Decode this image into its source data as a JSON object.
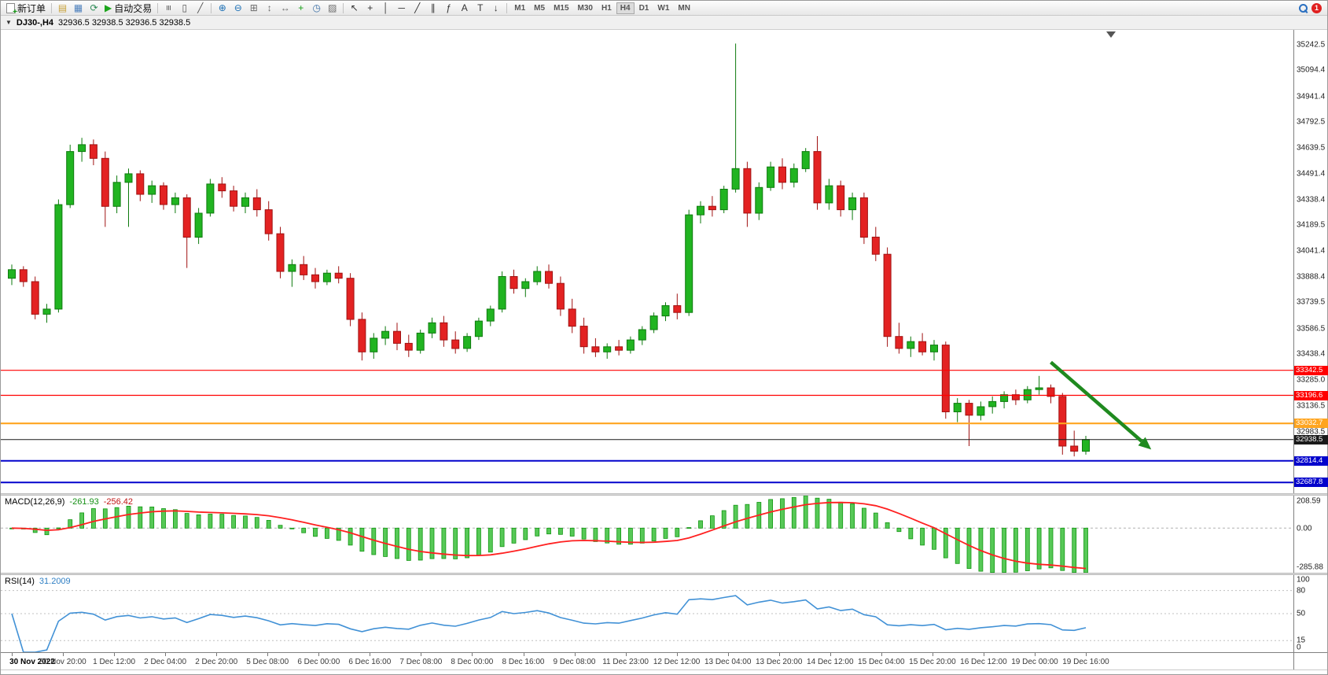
{
  "toolbar": {
    "timeframes": [
      "M1",
      "M5",
      "M15",
      "M30",
      "H1",
      "H4",
      "D1",
      "W1",
      "MN"
    ],
    "active_timeframe": "H4",
    "items": [
      {
        "type": "button",
        "name": "new-order-button",
        "icon": "doc",
        "label": "新订单"
      },
      {
        "type": "sep"
      },
      {
        "type": "icon",
        "name": "profiles-icon",
        "glyph": "▤",
        "color": "#c8a23c"
      },
      {
        "type": "icon",
        "name": "data-window-icon",
        "glyph": "▦",
        "color": "#4f81bd"
      },
      {
        "type": "icon",
        "name": "refresh-icon",
        "glyph": "⟳",
        "color": "#2e8b57"
      },
      {
        "type": "button",
        "name": "autotrading-button",
        "glyph": "▶",
        "glyph_color": "#1ca51c",
        "label": "自动交易"
      },
      {
        "type": "sep"
      },
      {
        "type": "icon",
        "name": "bars-chart-icon",
        "glyph": "≡",
        "color": "#555555",
        "rotate": true
      },
      {
        "type": "icon",
        "name": "candlestick-chart-icon",
        "glyph": "▯",
        "color": "#555555"
      },
      {
        "type": "icon",
        "name": "line-chart-icon",
        "glyph": "╱",
        "color": "#555555"
      },
      {
        "type": "sep"
      },
      {
        "type": "icon",
        "name": "zoom-in-icon",
        "glyph": "⊕",
        "color": "#1b6fb5"
      },
      {
        "type": "icon",
        "name": "zoom-out-icon",
        "glyph": "⊖",
        "color": "#1b6fb5"
      },
      {
        "type": "icon",
        "name": "tile-windows-icon",
        "glyph": "⊞",
        "color": "#6b6b6b"
      },
      {
        "type": "icon",
        "name": "arrange-vertical-icon",
        "glyph": "↕",
        "color": "#6b6b6b"
      },
      {
        "type": "icon",
        "name": "arrange-horizontal-icon",
        "glyph": "↔",
        "color": "#6b6b6b"
      },
      {
        "type": "icon",
        "name": "indicators-icon",
        "glyph": "+",
        "color": "#18a018"
      },
      {
        "type": "icon",
        "name": "periods-icon",
        "glyph": "◷",
        "color": "#3a6ea5"
      },
      {
        "type": "icon",
        "name": "templates-icon",
        "glyph": "▨",
        "color": "#6b6b6b"
      },
      {
        "type": "sep"
      },
      {
        "type": "icon",
        "name": "cursor-icon",
        "glyph": "↖",
        "color": "#333333"
      },
      {
        "type": "icon",
        "name": "crosshair-icon",
        "glyph": "+",
        "color": "#333333"
      },
      {
        "type": "icon",
        "name": "vertical-line-icon",
        "glyph": "│",
        "color": "#333333"
      },
      {
        "type": "icon",
        "name": "horizontal-line-icon",
        "glyph": "─",
        "color": "#333333"
      },
      {
        "type": "icon",
        "name": "trendline-icon",
        "glyph": "╱",
        "color": "#333333"
      },
      {
        "type": "icon",
        "name": "channel-icon",
        "glyph": "∥",
        "color": "#333333"
      },
      {
        "type": "icon",
        "name": "fibonacci-icon",
        "glyph": "ƒ",
        "color": "#333333"
      },
      {
        "type": "icon",
        "name": "text-icon",
        "glyph": "A",
        "color": "#333333"
      },
      {
        "type": "icon",
        "name": "label-icon",
        "glyph": "T",
        "color": "#333333"
      },
      {
        "type": "icon",
        "name": "arrow-tool-icon",
        "glyph": "↓",
        "color": "#333333"
      },
      {
        "type": "sep"
      },
      {
        "type": "timeframes"
      },
      {
        "type": "spacer"
      },
      {
        "type": "search",
        "name": "search-icon"
      },
      {
        "type": "badge",
        "name": "notification-badge",
        "text": "1"
      }
    ]
  },
  "chart_header": {
    "menu_marker": "▼",
    "symbol_period": "DJ30-,H4",
    "quotes": "32936.5 32938.5 32936.5 32938.5"
  },
  "chart_data": {
    "type": "candlestick",
    "symbol": "DJ30-",
    "period": "H4",
    "price_max": 35330,
    "price_min": 32620,
    "colors": {
      "up": "#21b421",
      "up_border": "#0e7a0e",
      "down": "#e32222",
      "down_border": "#a01212",
      "background": "#ffffff"
    },
    "price_axis_labels": [
      "35242.5",
      "35094.4",
      "34941.4",
      "34792.5",
      "34639.5",
      "34491.4",
      "34338.4",
      "34189.5",
      "34041.4",
      "33888.4",
      "33739.5",
      "33586.5",
      "33438.4",
      "33285.0",
      "33136.5",
      "32983.5"
    ],
    "hlines": [
      {
        "price": 33342.5,
        "label": "33342.5",
        "color": "#ff0000",
        "width": 1.2
      },
      {
        "price": 33196.6,
        "label": "33196.6",
        "color": "#ff0000",
        "width": 1.2
      },
      {
        "price": 33032.7,
        "label": "33032.7",
        "color": "#ffa520",
        "width": 2.2
      },
      {
        "price": 32938.5,
        "label": "32938.5",
        "color": "#1a1a1a",
        "width": 1
      },
      {
        "price": 32814.4,
        "label": "32814.4",
        "color": "#0202cc",
        "width": 2
      },
      {
        "price": 32687.8,
        "label": "32687.8",
        "color": "#0202cc",
        "width": 2
      }
    ],
    "arrow": {
      "from_index": 89.0,
      "from_price": 33390,
      "to_index": 97.6,
      "to_price": 32880,
      "color": "#1f8a1f"
    },
    "time_labels": [
      "30 Nov 2022",
      "30 Nov 20:00",
      "1 Dec 12:00",
      "2 Dec 04:00",
      "2 Dec 20:00",
      "5 Dec 08:00",
      "6 Dec 00:00",
      "6 Dec 16:00",
      "7 Dec 08:00",
      "8 Dec 00:00",
      "8 Dec 16:00",
      "9 Dec 08:00",
      "11 Dec 23:00",
      "12 Dec 12:00",
      "13 Dec 04:00",
      "13 Dec 20:00",
      "14 Dec 12:00",
      "15 Dec 04:00",
      "15 Dec 20:00",
      "16 Dec 12:00",
      "19 Dec 00:00",
      "19 Dec 16:00"
    ],
    "candles": [
      [
        33880,
        33960,
        33840,
        33930
      ],
      [
        33930,
        33950,
        33830,
        33860
      ],
      [
        33860,
        33890,
        33640,
        33670
      ],
      [
        33670,
        33730,
        33620,
        33700
      ],
      [
        33700,
        34340,
        33680,
        34310
      ],
      [
        34310,
        34660,
        34290,
        34620
      ],
      [
        34620,
        34700,
        34560,
        34660
      ],
      [
        34660,
        34690,
        34540,
        34580
      ],
      [
        34580,
        34620,
        34180,
        34300
      ],
      [
        34300,
        34480,
        34260,
        34440
      ],
      [
        34440,
        34520,
        34180,
        34490
      ],
      [
        34490,
        34510,
        34330,
        34370
      ],
      [
        34370,
        34450,
        34320,
        34420
      ],
      [
        34420,
        34440,
        34280,
        34310
      ],
      [
        34310,
        34380,
        34260,
        34350
      ],
      [
        34350,
        34370,
        33940,
        34120
      ],
      [
        34120,
        34290,
        34080,
        34260
      ],
      [
        34260,
        34460,
        34240,
        34430
      ],
      [
        34430,
        34470,
        34350,
        34390
      ],
      [
        34390,
        34420,
        34270,
        34300
      ],
      [
        34300,
        34380,
        34260,
        34350
      ],
      [
        34350,
        34400,
        34240,
        34280
      ],
      [
        34280,
        34330,
        34100,
        34140
      ],
      [
        34140,
        34180,
        33880,
        33920
      ],
      [
        33920,
        33990,
        33830,
        33960
      ],
      [
        33960,
        34010,
        33870,
        33900
      ],
      [
        33900,
        33940,
        33820,
        33860
      ],
      [
        33860,
        33930,
        33840,
        33910
      ],
      [
        33910,
        33950,
        33850,
        33880
      ],
      [
        33880,
        33910,
        33600,
        33640
      ],
      [
        33640,
        33680,
        33400,
        33450
      ],
      [
        33450,
        33560,
        33410,
        33530
      ],
      [
        33530,
        33600,
        33490,
        33570
      ],
      [
        33570,
        33620,
        33460,
        33500
      ],
      [
        33500,
        33550,
        33420,
        33460
      ],
      [
        33460,
        33580,
        33440,
        33560
      ],
      [
        33560,
        33650,
        33530,
        33620
      ],
      [
        33620,
        33660,
        33480,
        33520
      ],
      [
        33520,
        33570,
        33440,
        33470
      ],
      [
        33470,
        33560,
        33450,
        33540
      ],
      [
        33540,
        33650,
        33520,
        33630
      ],
      [
        33630,
        33720,
        33600,
        33700
      ],
      [
        33700,
        33920,
        33680,
        33890
      ],
      [
        33890,
        33930,
        33790,
        33820
      ],
      [
        33820,
        33880,
        33770,
        33860
      ],
      [
        33860,
        33950,
        33840,
        33920
      ],
      [
        33920,
        33960,
        33820,
        33850
      ],
      [
        33850,
        33890,
        33660,
        33700
      ],
      [
        33700,
        33760,
        33560,
        33600
      ],
      [
        33600,
        33650,
        33440,
        33480
      ],
      [
        33480,
        33530,
        33420,
        33450
      ],
      [
        33450,
        33500,
        33410,
        33480
      ],
      [
        33480,
        33520,
        33430,
        33460
      ],
      [
        33460,
        33540,
        33440,
        33520
      ],
      [
        33520,
        33600,
        33490,
        33580
      ],
      [
        33580,
        33680,
        33560,
        33660
      ],
      [
        33660,
        33740,
        33630,
        33720
      ],
      [
        33720,
        33790,
        33640,
        33680
      ],
      [
        33680,
        34280,
        33660,
        34250
      ],
      [
        34250,
        34330,
        34200,
        34300
      ],
      [
        34300,
        34360,
        34240,
        34280
      ],
      [
        34280,
        34420,
        34260,
        34400
      ],
      [
        34400,
        35250,
        34380,
        34520
      ],
      [
        34520,
        34560,
        34180,
        34260
      ],
      [
        34260,
        34440,
        34220,
        34410
      ],
      [
        34410,
        34560,
        34390,
        34530
      ],
      [
        34530,
        34580,
        34400,
        34440
      ],
      [
        34440,
        34550,
        34410,
        34520
      ],
      [
        34520,
        34640,
        34500,
        34620
      ],
      [
        34620,
        34710,
        34280,
        34320
      ],
      [
        34320,
        34460,
        34280,
        34420
      ],
      [
        34420,
        34450,
        34240,
        34280
      ],
      [
        34280,
        34380,
        34220,
        34350
      ],
      [
        34350,
        34380,
        34080,
        34120
      ],
      [
        34120,
        34180,
        33980,
        34020
      ],
      [
        34020,
        34060,
        33480,
        33540
      ],
      [
        33540,
        33620,
        33440,
        33470
      ],
      [
        33470,
        33540,
        33420,
        33510
      ],
      [
        33510,
        33560,
        33430,
        33450
      ],
      [
        33450,
        33520,
        33400,
        33490
      ],
      [
        33490,
        33510,
        33060,
        33100
      ],
      [
        33100,
        33180,
        33040,
        33150
      ],
      [
        33150,
        33170,
        32900,
        33080
      ],
      [
        33080,
        33160,
        33050,
        33130
      ],
      [
        33130,
        33190,
        33090,
        33160
      ],
      [
        33160,
        33220,
        33120,
        33200
      ],
      [
        33200,
        33230,
        33140,
        33170
      ],
      [
        33170,
        33250,
        33150,
        33230
      ],
      [
        33230,
        33310,
        33200,
        33240
      ],
      [
        33240,
        33260,
        33150,
        33190
      ],
      [
        33190,
        33210,
        32850,
        32900
      ],
      [
        32900,
        32990,
        32840,
        32870
      ],
      [
        32870,
        32960,
        32850,
        32938.5
      ]
    ]
  },
  "macd": {
    "label": "MACD(12,26,9)",
    "value_main": "-261.93",
    "value_signal": "-256.42",
    "axis_labels": [
      "208.59",
      "0.00",
      "-285.88"
    ],
    "axis_max": 208.59,
    "axis_min": -285.88,
    "histogram_color": "#57c957",
    "histogram_border": "#119611",
    "signal_color": "#ff2020"
  },
  "rsi": {
    "label": "RSI(14)",
    "value": "31.2009",
    "axis_labels": [
      "100",
      "80",
      "50",
      "15",
      "0"
    ],
    "levels": [
      80,
      50,
      15
    ],
    "line_color": "#4191d6"
  }
}
